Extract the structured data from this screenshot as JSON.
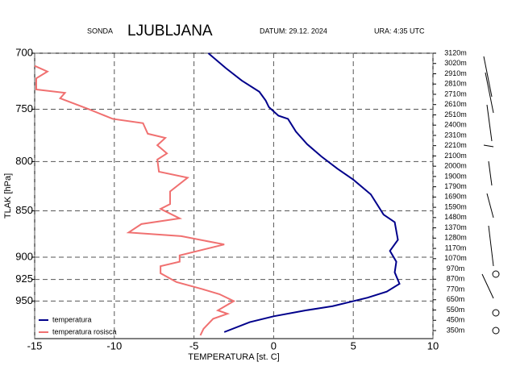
{
  "chart_data": {
    "type": "line",
    "log_y": true,
    "header": {
      "label": "SONDA",
      "station": "LJUBLJANA",
      "date": "DATUM: 29.12. 2024",
      "time": "URA:  4:35 UTC"
    },
    "xlabel": "TEMPERATURA [st. C]",
    "ylabel": "TLAK [hPa]",
    "xlim": [
      -15,
      10
    ],
    "xticks": [
      -15,
      -10,
      -5,
      0,
      5,
      10
    ],
    "ylim": [
      700,
      995
    ],
    "yticks": [
      700,
      750,
      800,
      850,
      900,
      925,
      950
    ],
    "grid": true,
    "legend": "lower left",
    "altitude_labels": [
      "3120m",
      "3020m",
      "2910m",
      "2810m",
      "2710m",
      "2610m",
      "2510m",
      "2400m",
      "2310m",
      "2210m",
      "2100m",
      "2000m",
      "1900m",
      "1790m",
      "1690m",
      "1590m",
      "1480m",
      "1370m",
      "1280m",
      "1170m",
      "1070m",
      "970m",
      "870m",
      "770m",
      "650m",
      "550m",
      "450m",
      "350m"
    ],
    "series": [
      {
        "name": "temperatura",
        "color": "#00008b",
        "x": [
          -4.1,
          -3.0,
          -2.0,
          -0.9,
          -0.5,
          -0.3,
          0.3,
          0.9,
          1.4,
          2.1,
          3.0,
          4.0,
          5.0,
          6.1,
          6.9,
          7.6,
          7.8,
          7.3,
          7.7,
          7.6,
          7.9,
          7.1,
          5.9,
          3.7,
          2.0,
          0.0,
          -1.5,
          -3.1
        ],
        "y": [
          700,
          713,
          724,
          734,
          742,
          748,
          756,
          759,
          771,
          783,
          795,
          807,
          818,
          833,
          854,
          862,
          881,
          893,
          905,
          917,
          930,
          939,
          946,
          956,
          961,
          968,
          975,
          987
        ]
      },
      {
        "name": "temperatura rosisca",
        "color": "#f07070",
        "x": [
          -15.0,
          -14.2,
          -14.9,
          -14.9,
          -13.1,
          -13.4,
          -11.6,
          -10.1,
          -8.2,
          -7.9,
          -6.8,
          -7.3,
          -6.7,
          -7.3,
          -7.2,
          -5.4,
          -6.5,
          -6.5,
          -7.1,
          -5.9,
          -8.3,
          -9.1,
          -5.8,
          -3.1,
          -5.9,
          -5.9,
          -7.1,
          -7.1,
          -6.1,
          -4.5,
          -3.4,
          -2.5,
          -3.5,
          -2.9,
          -3.8,
          -4.4,
          -4.6
        ],
        "y": [
          711,
          716,
          722,
          732,
          735,
          740,
          750,
          759,
          763,
          773,
          777,
          784,
          792,
          798,
          810,
          816,
          830,
          843,
          848,
          858,
          864,
          873,
          877,
          886,
          898,
          905,
          910,
          918,
          928,
          936,
          942,
          950,
          961,
          965,
          971,
          983,
          991
        ]
      }
    ]
  }
}
